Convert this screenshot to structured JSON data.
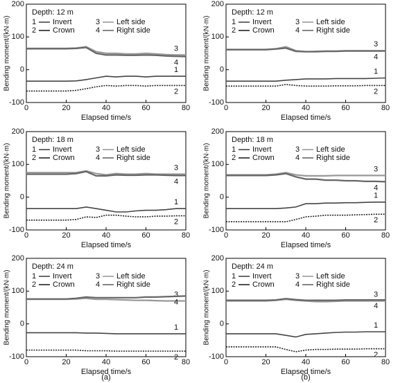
{
  "panel_labels": [
    "(a)",
    "(b)"
  ],
  "chart_data": [
    {
      "type": "line",
      "title": "Depth: 12 m",
      "y_label": "Bending moment/(kN·m)",
      "x_label": "Elapsed time/s",
      "xlim": [
        0,
        80
      ],
      "xticks": [
        0,
        20,
        40,
        60,
        80
      ],
      "ylim": [
        -100,
        200
      ],
      "yticks": [
        -100,
        0,
        100,
        200
      ],
      "x": [
        0,
        5,
        10,
        15,
        20,
        25,
        30,
        35,
        40,
        45,
        50,
        55,
        60,
        65,
        70,
        75,
        80
      ],
      "series": [
        {
          "number": "1",
          "name": "Invert",
          "color": "#444444",
          "values": [
            -35,
            -35,
            -35,
            -35,
            -35,
            -34,
            -30,
            -25,
            -20,
            -22,
            -20,
            -20,
            -22,
            -20,
            -20,
            -20,
            -20
          ]
        },
        {
          "number": "2",
          "name": "Crown",
          "color": "#222222",
          "values": [
            -65,
            -65,
            -65,
            -65,
            -65,
            -63,
            -58,
            -52,
            -48,
            -50,
            -48,
            -48,
            -50,
            -48,
            -48,
            -48,
            -48
          ]
        },
        {
          "number": "3",
          "name": "Left side",
          "color": "#999999",
          "values": [
            65,
            65,
            65,
            65,
            65,
            66,
            70,
            55,
            50,
            50,
            48,
            48,
            50,
            48,
            46,
            45,
            45
          ]
        },
        {
          "number": "4",
          "name": "Right side",
          "color": "#666666",
          "values": [
            64,
            64,
            64,
            64,
            64,
            65,
            68,
            50,
            45,
            45,
            44,
            44,
            45,
            44,
            42,
            41,
            40
          ]
        }
      ]
    },
    {
      "type": "line",
      "title": "Depth: 12 m",
      "y_label": "Bending moment/(kN·m)",
      "x_label": "Elapsed time/s",
      "xlim": [
        0,
        80
      ],
      "xticks": [
        0,
        20,
        40,
        60,
        80
      ],
      "ylim": [
        -100,
        200
      ],
      "yticks": [
        -100,
        0,
        100,
        200
      ],
      "x": [
        0,
        5,
        10,
        15,
        20,
        25,
        30,
        35,
        40,
        45,
        50,
        55,
        60,
        65,
        70,
        75,
        80
      ],
      "series": [
        {
          "number": "1",
          "name": "Invert",
          "color": "#444444",
          "values": [
            -35,
            -35,
            -35,
            -35,
            -35,
            -35,
            -32,
            -30,
            -28,
            -28,
            -28,
            -27,
            -27,
            -27,
            -27,
            -26,
            -25
          ]
        },
        {
          "number": "2",
          "name": "Crown",
          "color": "#222222",
          "values": [
            -50,
            -50,
            -50,
            -50,
            -50,
            -50,
            -45,
            -48,
            -50,
            -50,
            -50,
            -49,
            -49,
            -49,
            -48,
            -48,
            -48
          ]
        },
        {
          "number": "3",
          "name": "Left side",
          "color": "#999999",
          "values": [
            62,
            62,
            62,
            62,
            62,
            64,
            70,
            58,
            55,
            56,
            57,
            57,
            58,
            58,
            58,
            58,
            58
          ]
        },
        {
          "number": "4",
          "name": "Right side",
          "color": "#666666",
          "values": [
            61,
            61,
            61,
            61,
            61,
            63,
            66,
            56,
            55,
            55,
            56,
            56,
            57,
            57,
            57,
            57,
            57
          ]
        }
      ]
    },
    {
      "type": "line",
      "title": "Depth: 18 m",
      "y_label": "Bending moment/(kN·m)",
      "x_label": "Elapsed time/s",
      "xlim": [
        0,
        80
      ],
      "xticks": [
        0,
        20,
        40,
        60,
        80
      ],
      "ylim": [
        -100,
        200
      ],
      "yticks": [
        -100,
        0,
        100,
        200
      ],
      "x": [
        0,
        5,
        10,
        15,
        20,
        25,
        30,
        35,
        40,
        45,
        50,
        55,
        60,
        65,
        70,
        75,
        80
      ],
      "series": [
        {
          "number": "1",
          "name": "Invert",
          "color": "#444444",
          "values": [
            -35,
            -35,
            -35,
            -35,
            -35,
            -35,
            -30,
            -35,
            -40,
            -45,
            -45,
            -42,
            -40,
            -40,
            -38,
            -35,
            -35
          ]
        },
        {
          "number": "2",
          "name": "Crown",
          "color": "#222222",
          "values": [
            -70,
            -70,
            -70,
            -70,
            -70,
            -68,
            -60,
            -62,
            -55,
            -55,
            -58,
            -60,
            -60,
            -58,
            -58,
            -57,
            -57
          ]
        },
        {
          "number": "3",
          "name": "Left side",
          "color": "#999999",
          "values": [
            75,
            75,
            75,
            75,
            75,
            75,
            80,
            72,
            68,
            72,
            70,
            70,
            72,
            70,
            70,
            70,
            70
          ]
        },
        {
          "number": "4",
          "name": "Right side",
          "color": "#666666",
          "values": [
            70,
            70,
            70,
            70,
            70,
            72,
            78,
            65,
            65,
            68,
            67,
            67,
            68,
            68,
            67,
            66,
            66
          ]
        }
      ]
    },
    {
      "type": "line",
      "title": "Depth: 18 m",
      "y_label": "Bending moment/(kN·m)",
      "x_label": "Elapsed time/s",
      "xlim": [
        0,
        80
      ],
      "xticks": [
        0,
        20,
        40,
        60,
        80
      ],
      "ylim": [
        -100,
        200
      ],
      "yticks": [
        -100,
        0,
        100,
        200
      ],
      "x": [
        0,
        5,
        10,
        15,
        20,
        25,
        30,
        35,
        40,
        45,
        50,
        55,
        60,
        65,
        70,
        75,
        80
      ],
      "series": [
        {
          "number": "1",
          "name": "Invert",
          "color": "#444444",
          "values": [
            -35,
            -35,
            -35,
            -35,
            -35,
            -35,
            -33,
            -30,
            -20,
            -20,
            -18,
            -18,
            -17,
            -17,
            -16,
            -15,
            -15
          ]
        },
        {
          "number": "2",
          "name": "Crown",
          "color": "#222222",
          "values": [
            -75,
            -75,
            -75,
            -75,
            -75,
            -75,
            -75,
            -68,
            -60,
            -58,
            -55,
            -55,
            -55,
            -54,
            -53,
            -52,
            -52
          ]
        },
        {
          "number": "3",
          "name": "Left side",
          "color": "#999999",
          "values": [
            68,
            68,
            68,
            68,
            68,
            70,
            75,
            68,
            65,
            65,
            65,
            66,
            66,
            66,
            66,
            66,
            66
          ]
        },
        {
          "number": "4",
          "name": "Right side",
          "color": "#666666",
          "values": [
            66,
            66,
            66,
            66,
            66,
            68,
            72,
            62,
            55,
            55,
            52,
            52,
            50,
            50,
            48,
            48,
            47
          ]
        }
      ]
    },
    {
      "type": "line",
      "title": "Depth: 24 m",
      "y_label": "Bending moment/(kN·m)",
      "x_label": "Elapsed time/s",
      "xlim": [
        0,
        80
      ],
      "xticks": [
        0,
        20,
        40,
        60,
        80
      ],
      "ylim": [
        -100,
        200
      ],
      "yticks": [
        -100,
        0,
        100,
        200
      ],
      "x": [
        0,
        5,
        10,
        15,
        20,
        25,
        30,
        35,
        40,
        45,
        50,
        55,
        60,
        65,
        70,
        75,
        80
      ],
      "series": [
        {
          "number": "1",
          "name": "Invert",
          "color": "#444444",
          "values": [
            -27,
            -27,
            -27,
            -27,
            -27,
            -27,
            -28,
            -28,
            -29,
            -30,
            -30,
            -30,
            -30,
            -30,
            -30,
            -30,
            -30
          ]
        },
        {
          "number": "2",
          "name": "Crown",
          "color": "#222222",
          "values": [
            -80,
            -80,
            -80,
            -80,
            -80,
            -80,
            -82,
            -82,
            -82,
            -83,
            -83,
            -83,
            -83,
            -83,
            -83,
            -83,
            -83
          ]
        },
        {
          "number": "3",
          "name": "Left side",
          "color": "#999999",
          "values": [
            75,
            75,
            75,
            75,
            75,
            76,
            78,
            75,
            75,
            74,
            73,
            72,
            72,
            71,
            70,
            70,
            70
          ]
        },
        {
          "number": "4",
          "name": "Right side",
          "color": "#666666",
          "values": [
            76,
            76,
            76,
            76,
            76,
            78,
            82,
            80,
            80,
            80,
            80,
            80,
            82,
            82,
            83,
            84,
            85
          ]
        }
      ]
    },
    {
      "type": "line",
      "title": "Depth: 24 m",
      "y_label": "Bending moment/(kN·m)",
      "x_label": "Elapsed time/s",
      "xlim": [
        0,
        80
      ],
      "xticks": [
        0,
        20,
        40,
        60,
        80
      ],
      "ylim": [
        -100,
        200
      ],
      "yticks": [
        -100,
        0,
        100,
        200
      ],
      "x": [
        0,
        5,
        10,
        15,
        20,
        25,
        30,
        35,
        40,
        45,
        50,
        55,
        60,
        65,
        70,
        75,
        80
      ],
      "series": [
        {
          "number": "1",
          "name": "Invert",
          "color": "#444444",
          "values": [
            -30,
            -30,
            -30,
            -30,
            -30,
            -30,
            -35,
            -40,
            -32,
            -30,
            -28,
            -26,
            -25,
            -25,
            -24,
            -24,
            -24
          ]
        },
        {
          "number": "2",
          "name": "Crown",
          "color": "#222222",
          "values": [
            -70,
            -70,
            -70,
            -70,
            -70,
            -70,
            -78,
            -85,
            -80,
            -78,
            -78,
            -77,
            -77,
            -77,
            -76,
            -76,
            -76
          ]
        },
        {
          "number": "3",
          "name": "Left side",
          "color": "#999999",
          "values": [
            70,
            70,
            70,
            70,
            70,
            72,
            75,
            72,
            70,
            68,
            68,
            69,
            70,
            70,
            70,
            70,
            70
          ]
        },
        {
          "number": "4",
          "name": "Right side",
          "color": "#666666",
          "values": [
            72,
            72,
            72,
            72,
            72,
            73,
            77,
            74,
            72,
            72,
            72,
            72,
            73,
            73,
            73,
            73,
            73
          ]
        }
      ]
    }
  ]
}
